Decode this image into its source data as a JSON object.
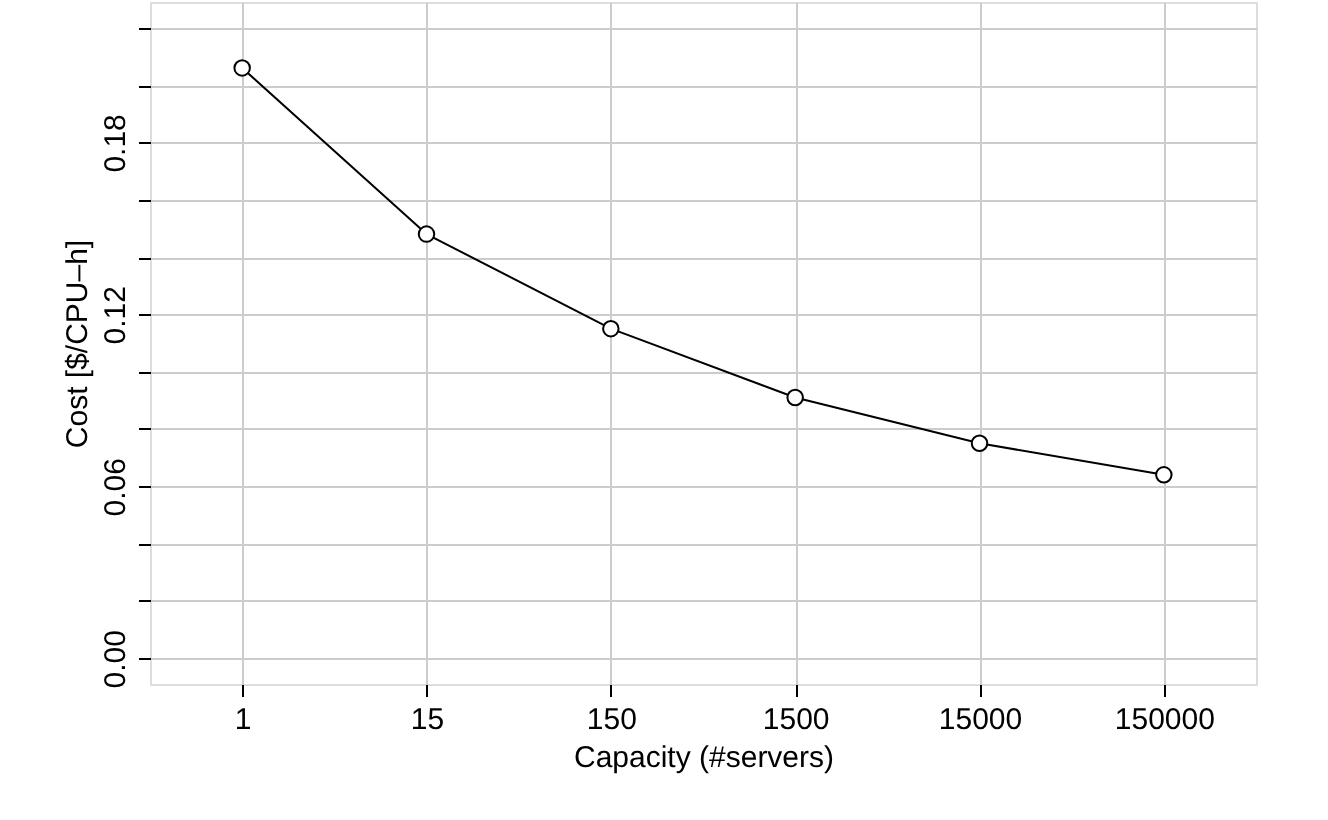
{
  "chart_data": {
    "type": "line",
    "xlabel": "Capacity (#servers)",
    "ylabel": "Cost [$/CPU–h]",
    "categories": [
      "1",
      "15",
      "150",
      "1500",
      "15000",
      "150000"
    ],
    "series": [
      {
        "color": "#000000",
        "values": [
          0.206,
          0.148,
          0.115,
          0.091,
          0.075,
          0.064
        ]
      }
    ],
    "ylim": [
      -0.009,
      0.229
    ],
    "yticks": [
      {
        "value": 0,
        "label": "0.00"
      },
      {
        "value": 0.02,
        "label": null
      },
      {
        "value": 0.04,
        "label": null
      },
      0.06,
      {
        "value": 0.08,
        "label": null
      },
      {
        "value": 0.1,
        "label": null
      },
      0.12,
      {
        "value": 0.14,
        "label": null
      },
      {
        "value": 0.16,
        "label": null
      },
      0.18,
      {
        "value": 0.2,
        "label": null
      },
      {
        "value": 0.22,
        "label": null
      }
    ],
    "grid": true,
    "marker": "circle",
    "line_style": "solid"
  }
}
